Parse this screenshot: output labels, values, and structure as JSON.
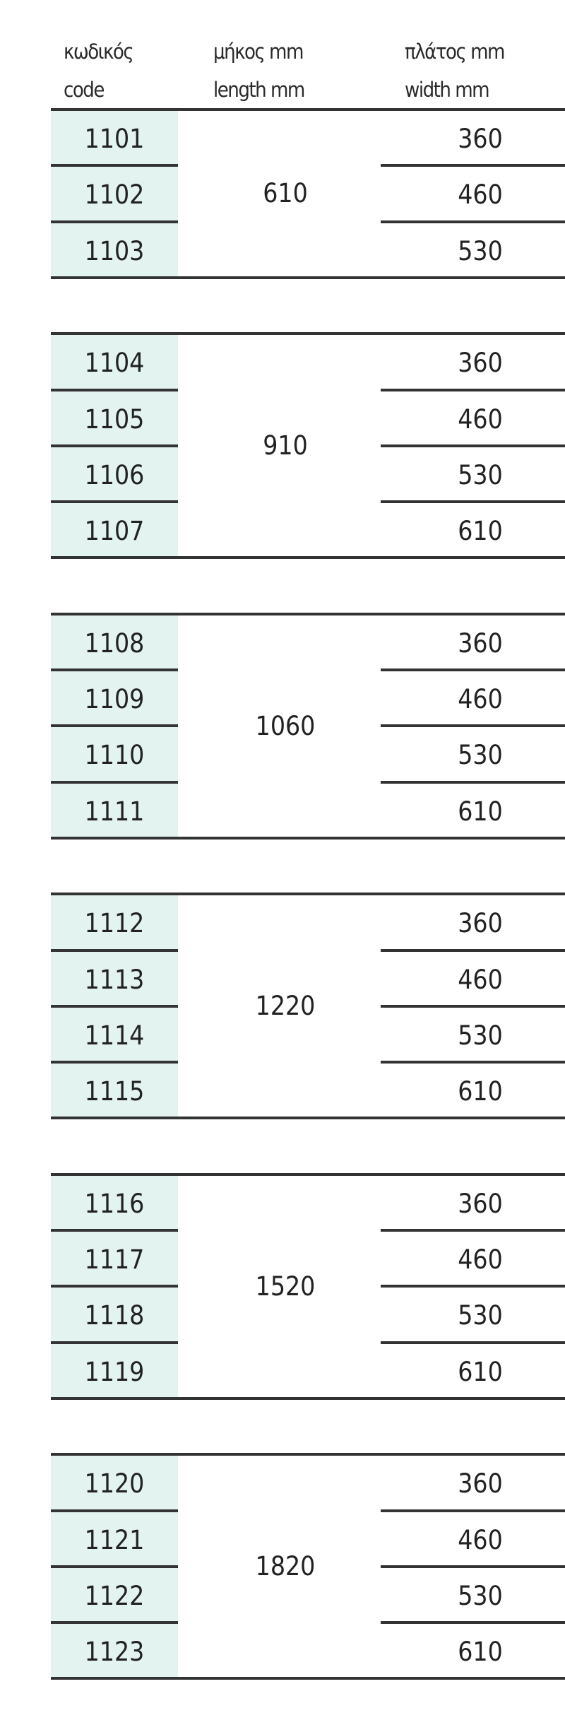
{
  "headers": {
    "code": {
      "greek": "κωδικός",
      "english": "code"
    },
    "length": {
      "greek": "μήκος mm",
      "english": "length mm"
    },
    "width": {
      "greek": "πλάτος mm",
      "english": "width mm"
    }
  },
  "colors": {
    "code_background": "#e2f3f0",
    "rule": "#333333",
    "text": "#222222"
  },
  "groups": [
    {
      "length": "610",
      "rows": [
        {
          "code": "1101",
          "width": "360"
        },
        {
          "code": "1102",
          "width": "460"
        },
        {
          "code": "1103",
          "width": "530"
        }
      ]
    },
    {
      "length": "910",
      "rows": [
        {
          "code": "1104",
          "width": "360"
        },
        {
          "code": "1105",
          "width": "460"
        },
        {
          "code": "1106",
          "width": "530"
        },
        {
          "code": "1107",
          "width": "610"
        }
      ]
    },
    {
      "length": "1060",
      "rows": [
        {
          "code": "1108",
          "width": "360"
        },
        {
          "code": "1109",
          "width": "460"
        },
        {
          "code": "1110",
          "width": "530"
        },
        {
          "code": "1111",
          "width": "610"
        }
      ]
    },
    {
      "length": "1220",
      "rows": [
        {
          "code": "1112",
          "width": "360"
        },
        {
          "code": "1113",
          "width": "460"
        },
        {
          "code": "1114",
          "width": "530"
        },
        {
          "code": "1115",
          "width": "610"
        }
      ]
    },
    {
      "length": "1520",
      "rows": [
        {
          "code": "1116",
          "width": "360"
        },
        {
          "code": "1117",
          "width": "460"
        },
        {
          "code": "1118",
          "width": "530"
        },
        {
          "code": "1119",
          "width": "610"
        }
      ]
    },
    {
      "length": "1820",
      "rows": [
        {
          "code": "1120",
          "width": "360"
        },
        {
          "code": "1121",
          "width": "460"
        },
        {
          "code": "1122",
          "width": "530"
        },
        {
          "code": "1123",
          "width": "610"
        }
      ]
    }
  ]
}
